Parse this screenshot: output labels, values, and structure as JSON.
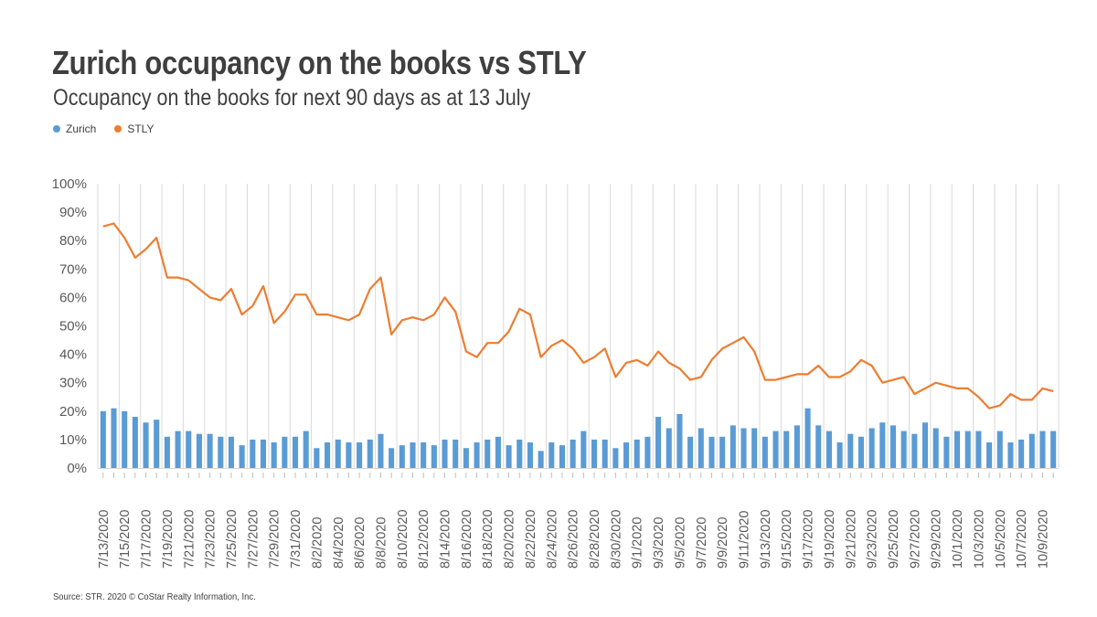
{
  "title": "Zurich occupancy on the books vs STLY",
  "subtitle": "Occupancy on the books for next 90 days as at 13 July",
  "source": "Source: STR. 2020 © CoStar Realty Information, Inc.",
  "colors": {
    "zurich": "#5b9bd5",
    "stly": "#ed7d31",
    "grid": "#d9d9d9",
    "text": "#595959"
  },
  "chart_data": {
    "type": "bar",
    "xlabel": "",
    "ylabel": "",
    "ylim": [
      0,
      100
    ],
    "yticks": [
      "0%",
      "10%",
      "20%",
      "30%",
      "40%",
      "50%",
      "60%",
      "70%",
      "80%",
      "90%",
      "100%"
    ],
    "grid": "vertical",
    "legend_position": "top-left",
    "categories": [
      "7/13/2020",
      "7/14/2020",
      "7/15/2020",
      "7/16/2020",
      "7/17/2020",
      "7/18/2020",
      "7/19/2020",
      "7/20/2020",
      "7/21/2020",
      "7/22/2020",
      "7/23/2020",
      "7/24/2020",
      "7/25/2020",
      "7/26/2020",
      "7/27/2020",
      "7/28/2020",
      "7/29/2020",
      "7/30/2020",
      "7/31/2020",
      "8/1/2020",
      "8/2/2020",
      "8/3/2020",
      "8/4/2020",
      "8/5/2020",
      "8/6/2020",
      "8/7/2020",
      "8/8/2020",
      "8/9/2020",
      "8/10/2020",
      "8/11/2020",
      "8/12/2020",
      "8/13/2020",
      "8/14/2020",
      "8/15/2020",
      "8/16/2020",
      "8/17/2020",
      "8/18/2020",
      "8/19/2020",
      "8/20/2020",
      "8/21/2020",
      "8/22/2020",
      "8/23/2020",
      "8/24/2020",
      "8/25/2020",
      "8/26/2020",
      "8/27/2020",
      "8/28/2020",
      "8/29/2020",
      "8/30/2020",
      "8/31/2020",
      "9/1/2020",
      "9/2/2020",
      "9/3/2020",
      "9/4/2020",
      "9/5/2020",
      "9/6/2020",
      "9/7/2020",
      "9/8/2020",
      "9/9/2020",
      "9/10/2020",
      "9/11/2020",
      "9/12/2020",
      "9/13/2020",
      "9/14/2020",
      "9/15/2020",
      "9/16/2020",
      "9/17/2020",
      "9/18/2020",
      "9/19/2020",
      "9/20/2020",
      "9/21/2020",
      "9/22/2020",
      "9/23/2020",
      "9/24/2020",
      "9/25/2020",
      "9/26/2020",
      "9/27/2020",
      "9/28/2020",
      "9/29/2020",
      "9/30/2020",
      "10/1/2020",
      "10/2/2020",
      "10/3/2020",
      "10/4/2020",
      "10/5/2020",
      "10/6/2020",
      "10/7/2020",
      "10/8/2020",
      "10/9/2020",
      "10/10/2020"
    ],
    "series": [
      {
        "name": "Zurich",
        "type": "bar",
        "values": [
          20,
          21,
          20,
          18,
          16,
          17,
          11,
          13,
          13,
          12,
          12,
          11,
          11,
          8,
          10,
          10,
          9,
          11,
          11,
          13,
          7,
          9,
          10,
          9,
          9,
          10,
          12,
          7,
          8,
          9,
          9,
          8,
          10,
          10,
          7,
          9,
          10,
          11,
          8,
          10,
          9,
          6,
          9,
          8,
          10,
          13,
          10,
          10,
          7,
          9,
          10,
          11,
          18,
          14,
          19,
          11,
          14,
          11,
          11,
          15,
          14,
          14,
          11,
          13,
          13,
          15,
          21,
          15,
          13,
          9,
          12,
          11,
          14,
          16,
          15,
          13,
          12,
          16,
          14,
          11,
          13,
          13,
          13,
          9,
          13,
          9,
          10,
          12,
          13,
          13
        ]
      },
      {
        "name": "STLY",
        "type": "line",
        "values": [
          85,
          86,
          81,
          74,
          77,
          81,
          67,
          67,
          66,
          63,
          60,
          59,
          63,
          54,
          57,
          64,
          51,
          55,
          61,
          61,
          54,
          54,
          53,
          52,
          54,
          63,
          67,
          47,
          52,
          53,
          52,
          54,
          60,
          55,
          41,
          39,
          44,
          44,
          48,
          56,
          54,
          39,
          43,
          45,
          42,
          37,
          39,
          42,
          32,
          37,
          38,
          36,
          41,
          37,
          35,
          31,
          32,
          38,
          42,
          44,
          46,
          41,
          31,
          31,
          32,
          33,
          33,
          36,
          32,
          32,
          34,
          38,
          36,
          30,
          31,
          32,
          26,
          28,
          30,
          29,
          28,
          28,
          25,
          21,
          22,
          26,
          24,
          24,
          28,
          27
        ]
      }
    ]
  }
}
